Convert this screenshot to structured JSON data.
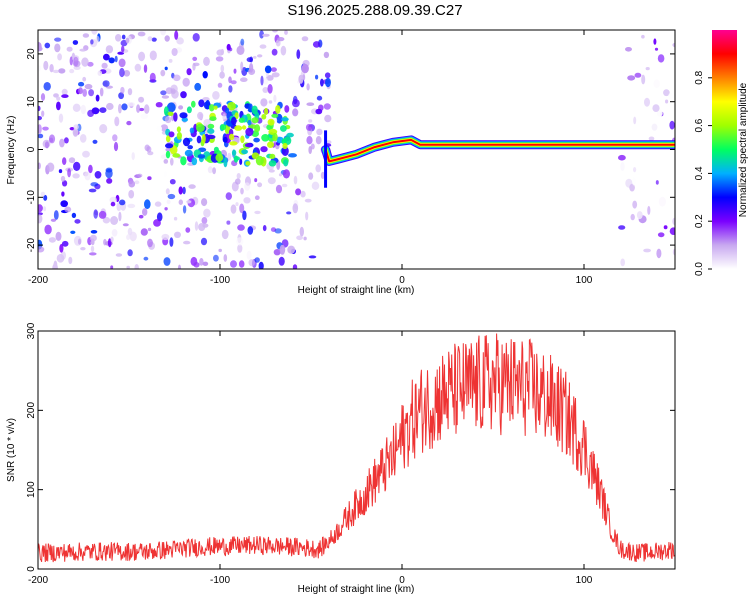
{
  "title": "S196.2025.288.09.39.C27",
  "chart_data": [
    {
      "type": "heatmap",
      "xlabel": "Height of straight line (km)",
      "ylabel": "Frequency (Hz)",
      "xlim": [
        -200,
        150
      ],
      "ylim": [
        -25,
        25
      ],
      "xticks": [
        -200,
        -100,
        0,
        100
      ],
      "yticks": [
        20,
        10,
        0,
        -10,
        -20
      ],
      "colorbar": {
        "label": "Normalized spectral amplitude",
        "range": [
          0,
          1
        ],
        "ticks": [
          0.0,
          0.2,
          0.4,
          0.6,
          0.8
        ],
        "colors": [
          "#ffffff",
          "#c8a8f0",
          "#7a00ff",
          "#0000ff",
          "#00b0ff",
          "#00ff60",
          "#a0ff00",
          "#ffff00",
          "#ff8000",
          "#ff0000",
          "#ff0090"
        ]
      },
      "noise_regions": [
        {
          "x": [
            -200,
            -40
          ],
          "density": 0.55,
          "amplitude": 0.25
        },
        {
          "x": [
            120,
            150
          ],
          "density": 0.25,
          "amplitude": 0.18
        }
      ],
      "ridge": {
        "points": [
          {
            "x": -42,
            "y": 0.0,
            "amplitude": 0.9
          },
          {
            "x": -40,
            "y": -2.5,
            "amplitude": 0.6
          },
          {
            "x": -35,
            "y": -2.0,
            "amplitude": 0.55
          },
          {
            "x": -25,
            "y": -1.0,
            "amplitude": 0.65
          },
          {
            "x": -15,
            "y": 0.5,
            "amplitude": 0.7
          },
          {
            "x": -5,
            "y": 1.5,
            "amplitude": 0.75
          },
          {
            "x": 5,
            "y": 2.0,
            "amplitude": 0.75
          },
          {
            "x": 10,
            "y": 1.0,
            "amplitude": 0.95
          },
          {
            "x": 60,
            "y": 1.0,
            "amplitude": 0.95
          },
          {
            "x": 110,
            "y": 1.0,
            "amplitude": 0.85
          },
          {
            "x": 150,
            "y": 1.0,
            "amplitude": 0.5
          }
        ]
      },
      "cluster": {
        "x": [
          -130,
          -60
        ],
        "y": [
          -3,
          10
        ],
        "amplitude": 0.45
      }
    },
    {
      "type": "line",
      "xlabel": "Height of straight line (km)",
      "ylabel": "SNR (10 * v/v)",
      "xlim": [
        -200,
        150
      ],
      "ylim": [
        0,
        300
      ],
      "xticks": [
        -200,
        -100,
        0,
        100
      ],
      "yticks": [
        0,
        100,
        200,
        300
      ],
      "color": "#ee3333",
      "series": [
        {
          "name": "SNR",
          "x": [
            -200,
            -170,
            -140,
            -110,
            -80,
            -60,
            -45,
            -38,
            -30,
            -20,
            -12,
            -5,
            0,
            5,
            10,
            20,
            30,
            40,
            50,
            60,
            70,
            80,
            90,
            100,
            110,
            115,
            120,
            130,
            140,
            150
          ],
          "y": [
            20,
            22,
            22,
            28,
            30,
            28,
            25,
            40,
            65,
            95,
            120,
            140,
            165,
            185,
            200,
            215,
            225,
            230,
            235,
            232,
            228,
            215,
            195,
            155,
            90,
            50,
            25,
            20,
            22,
            25
          ]
        }
      ]
    }
  ]
}
